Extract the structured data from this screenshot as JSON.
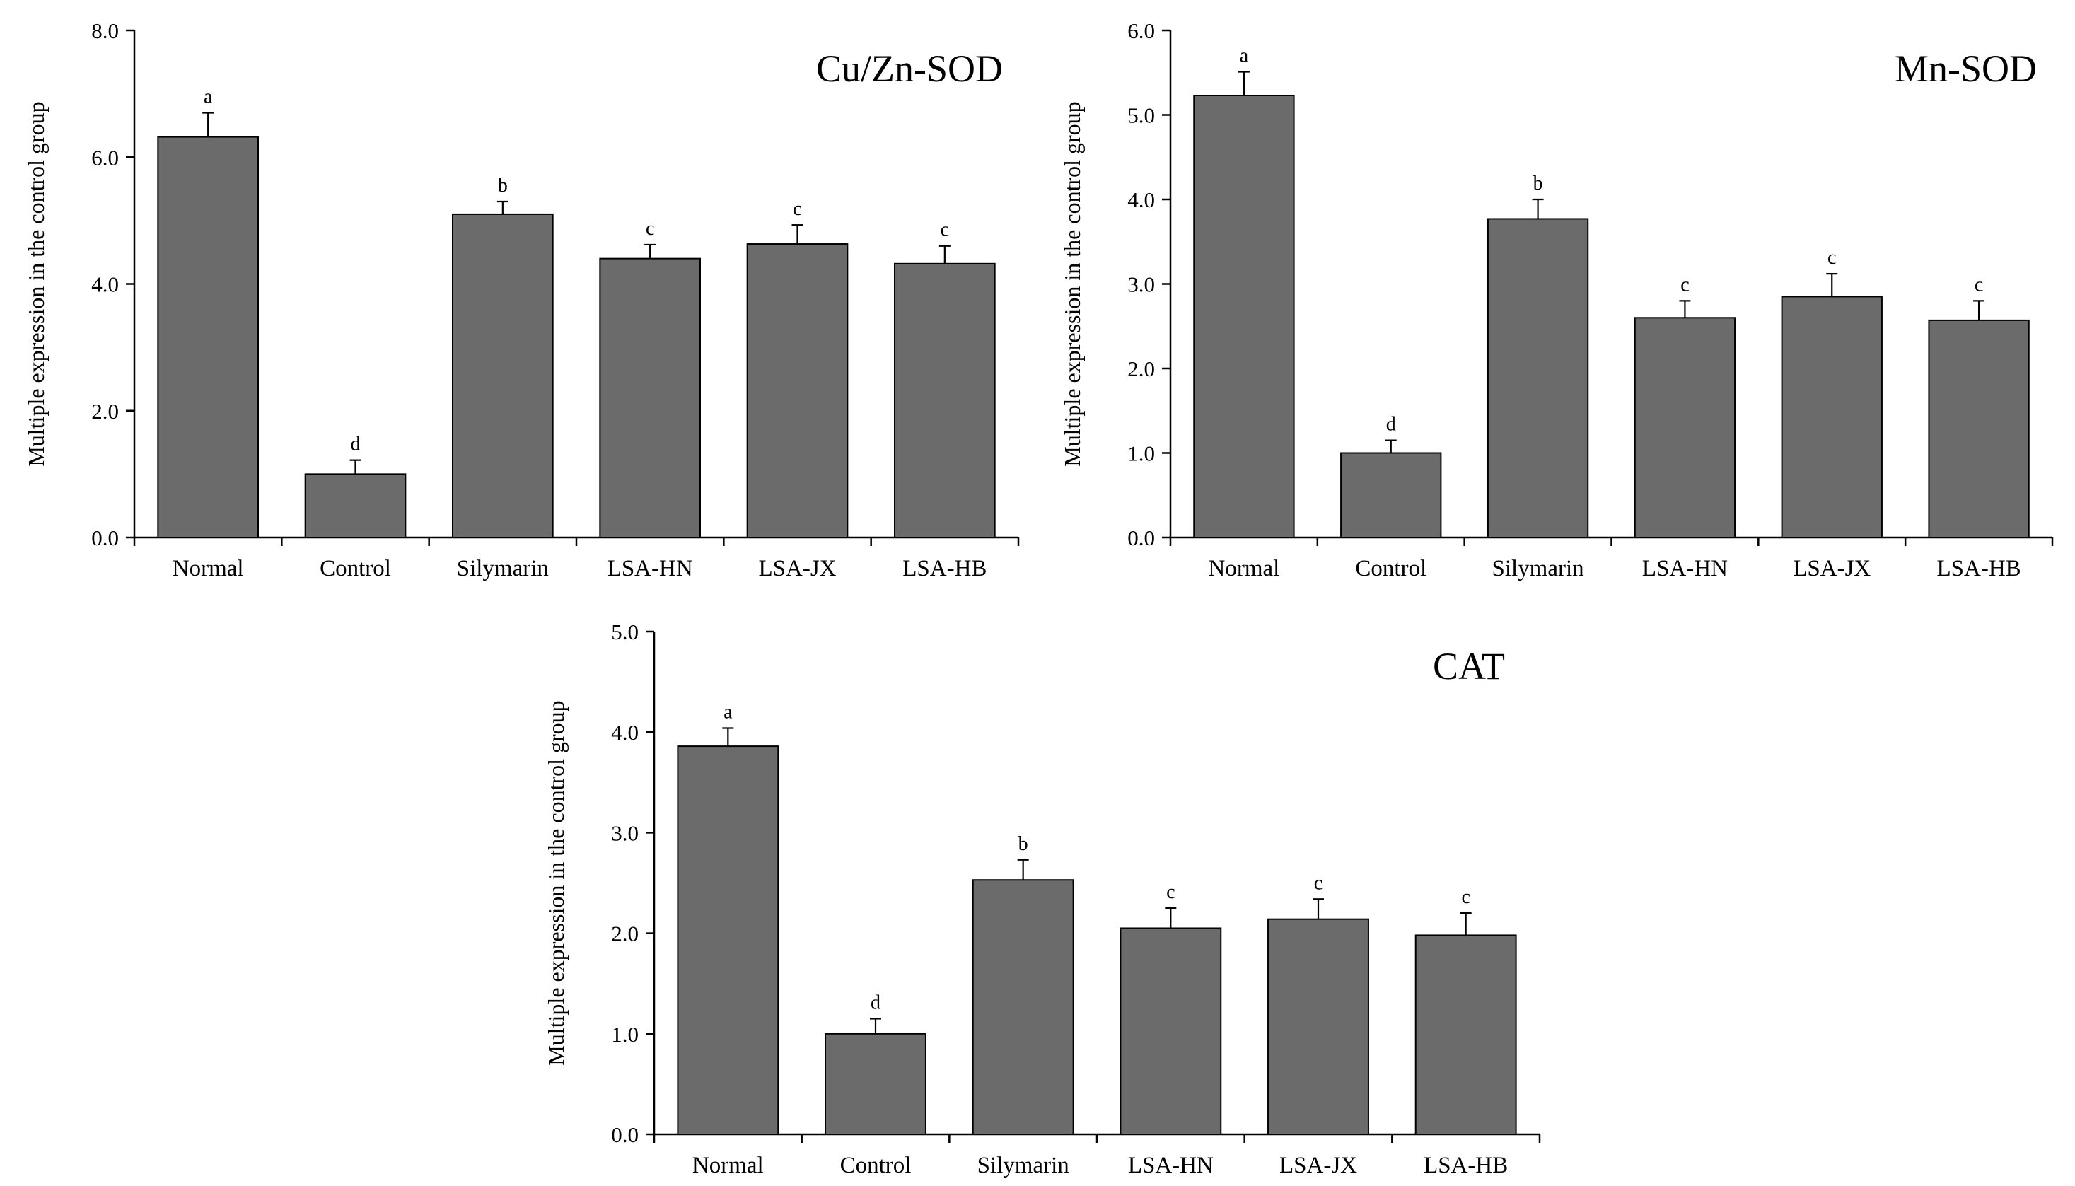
{
  "chart_data": [
    {
      "type": "bar",
      "title": "Cu/Zn-SOD",
      "xlabel": "",
      "ylabel": "Multiple expression in the control group",
      "ylim": [
        0,
        8
      ],
      "yticks": [
        0,
        2,
        4,
        6,
        8
      ],
      "ytick_labels": [
        "0.0",
        "2.0",
        "4.0",
        "6.0",
        "8.0"
      ],
      "categories": [
        "Normal",
        "Control",
        "Silymarin",
        "LSA-HN",
        "LSA-JX",
        "LSA-HB"
      ],
      "values": [
        6.32,
        1.0,
        5.1,
        4.4,
        4.63,
        4.32
      ],
      "errors": [
        0.38,
        0.22,
        0.2,
        0.22,
        0.3,
        0.28
      ],
      "significance": [
        "a",
        "d",
        "b",
        "c",
        "c",
        "c"
      ],
      "bar_color": "#6b6b6b",
      "grid": false
    },
    {
      "type": "bar",
      "title": "Mn-SOD",
      "xlabel": "",
      "ylabel": "Multiple expression in the control group",
      "ylim": [
        0,
        6
      ],
      "yticks": [
        0,
        1,
        2,
        3,
        4,
        5,
        6
      ],
      "ytick_labels": [
        "0.0",
        "1.0",
        "2.0",
        "3.0",
        "4.0",
        "5.0",
        "6.0"
      ],
      "categories": [
        "Normal",
        "Control",
        "Silymarin",
        "LSA-HN",
        "LSA-JX",
        "LSA-HB"
      ],
      "values": [
        5.23,
        1.0,
        3.77,
        2.6,
        2.85,
        2.57
      ],
      "errors": [
        0.28,
        0.15,
        0.23,
        0.2,
        0.27,
        0.23
      ],
      "significance": [
        "a",
        "d",
        "b",
        "c",
        "c",
        "c"
      ],
      "bar_color": "#6b6b6b",
      "grid": false
    },
    {
      "type": "bar",
      "title": "CAT",
      "xlabel": "",
      "ylabel": "Multiple expression in the control group",
      "ylim": [
        0,
        5
      ],
      "yticks": [
        0,
        1,
        2,
        3,
        4,
        5
      ],
      "ytick_labels": [
        "0.0",
        "1.0",
        "2.0",
        "3.0",
        "4.0",
        "5.0"
      ],
      "categories": [
        "Normal",
        "Control",
        "Silymarin",
        "LSA-HN",
        "LSA-JX",
        "LSA-HB"
      ],
      "values": [
        3.86,
        1.0,
        2.53,
        2.05,
        2.14,
        1.98
      ],
      "errors": [
        0.18,
        0.15,
        0.2,
        0.2,
        0.2,
        0.22
      ],
      "significance": [
        "a",
        "d",
        "b",
        "c",
        "c",
        "c"
      ],
      "bar_color": "#6b6b6b",
      "grid": false
    }
  ]
}
